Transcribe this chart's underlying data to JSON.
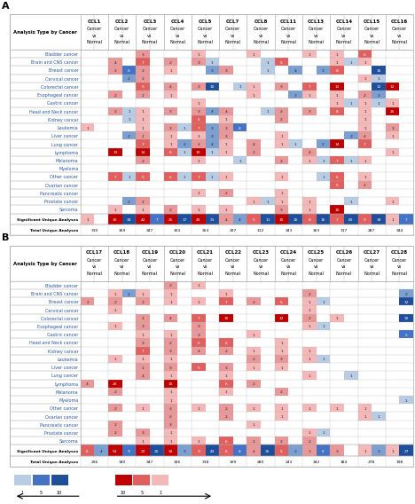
{
  "panel_A_cols": [
    "CCL1",
    "CCL2",
    "CCL3",
    "CCL4",
    "CCL5",
    "CCL7",
    "CCL8",
    "CCL11",
    "CCL13",
    "CCL14",
    "CCL15",
    "CCL16"
  ],
  "panel_B_cols": [
    "CCL17",
    "CCL18",
    "CCL19",
    "CCL20",
    "CCL21",
    "CCL22",
    "CCL23",
    "CCL24",
    "CCL25",
    "CCL26",
    "CCL27",
    "CCL28"
  ],
  "cancer_types": [
    "Bladder cancer",
    "Brain and CNS cancer",
    "Breast cancer",
    "Cervical cancer",
    "Colorectal cancer",
    "Esophageal cancer",
    "Gastric cancer",
    "Head and Neck cancer",
    "Kidney cancer",
    "Leukemia",
    "Liver cancer",
    "Lung cancer",
    "Lymphoma",
    "Melanoma",
    "Myeloma",
    "Other cancer",
    "Ovarian cancer",
    "Pancreatic cancer",
    "Prostate cancer",
    "Sarcoma"
  ],
  "panel_A_up": [
    [
      0,
      0,
      3,
      0,
      1,
      0,
      1,
      0,
      1,
      1,
      6,
      0
    ],
    [
      0,
      4,
      7,
      2,
      3,
      0,
      0,
      5,
      0,
      1,
      1,
      0
    ],
    [
      0,
      2,
      2,
      1,
      0,
      3,
      0,
      0,
      0,
      8,
      0,
      0
    ],
    [
      0,
      0,
      2,
      0,
      0,
      0,
      0,
      0,
      0,
      0,
      1,
      0
    ],
    [
      0,
      0,
      5,
      4,
      2,
      0,
      1,
      3,
      7,
      12,
      0,
      12
    ],
    [
      0,
      2,
      2,
      1,
      0,
      0,
      1,
      0,
      1,
      1,
      2,
      0
    ],
    [
      0,
      0,
      0,
      0,
      1,
      0,
      0,
      0,
      0,
      1,
      1,
      1
    ],
    [
      0,
      2,
      1,
      3,
      3,
      4,
      0,
      2,
      3,
      8,
      1,
      25
    ],
    [
      0,
      0,
      1,
      0,
      6,
      1,
      0,
      2,
      0,
      0,
      1,
      0
    ],
    [
      1,
      0,
      1,
      3,
      7,
      3,
      0,
      0,
      0,
      0,
      1,
      3
    ],
    [
      0,
      0,
      2,
      1,
      1,
      3,
      0,
      1,
      0,
      0,
      4,
      1
    ],
    [
      0,
      0,
      7,
      1,
      2,
      1,
      4,
      1,
      0,
      14,
      7,
      0
    ],
    [
      0,
      13,
      14,
      8,
      10,
      1,
      2,
      0,
      4,
      0,
      0,
      1
    ],
    [
      0,
      0,
      2,
      0,
      1,
      0,
      0,
      2,
      1,
      7,
      1,
      0
    ],
    [
      0,
      0,
      0,
      0,
      0,
      0,
      0,
      0,
      0,
      0,
      0,
      0
    ],
    [
      0,
      7,
      5,
      6,
      7,
      1,
      0,
      1,
      0,
      6,
      1,
      0
    ],
    [
      0,
      0,
      0,
      0,
      0,
      0,
      0,
      0,
      0,
      5,
      2,
      0
    ],
    [
      0,
      0,
      0,
      0,
      1,
      2,
      0,
      1,
      0,
      0,
      0,
      0
    ],
    [
      0,
      0,
      2,
      0,
      0,
      0,
      1,
      1,
      1,
      0,
      0,
      1
    ],
    [
      0,
      1,
      1,
      2,
      1,
      1,
      0,
      3,
      1,
      10,
      0,
      0
    ]
  ],
  "panel_A_down": [
    [
      0,
      0,
      0,
      0,
      0,
      0,
      0,
      0,
      0,
      0,
      0,
      0
    ],
    [
      0,
      0,
      0,
      0,
      1,
      0,
      1,
      0,
      0,
      1,
      0,
      0
    ],
    [
      0,
      6,
      0,
      0,
      3,
      0,
      1,
      4,
      3,
      0,
      16,
      0
    ],
    [
      0,
      2,
      0,
      0,
      0,
      0,
      0,
      0,
      0,
      0,
      1,
      0
    ],
    [
      0,
      0,
      0,
      0,
      10,
      1,
      0,
      0,
      0,
      0,
      12,
      0
    ],
    [
      0,
      0,
      0,
      0,
      0,
      0,
      0,
      2,
      0,
      0,
      2,
      0
    ],
    [
      0,
      0,
      0,
      0,
      0,
      0,
      0,
      0,
      0,
      1,
      1,
      0
    ],
    [
      0,
      1,
      0,
      0,
      4,
      0,
      1,
      0,
      0,
      0,
      0,
      0
    ],
    [
      0,
      1,
      0,
      0,
      0,
      0,
      0,
      0,
      0,
      0,
      0,
      0
    ],
    [
      0,
      0,
      0,
      1,
      3,
      8,
      0,
      0,
      0,
      0,
      0,
      0
    ],
    [
      0,
      2,
      0,
      0,
      3,
      0,
      0,
      0,
      0,
      3,
      0,
      0
    ],
    [
      0,
      0,
      0,
      2,
      4,
      0,
      0,
      1,
      2,
      0,
      0,
      0
    ],
    [
      0,
      0,
      0,
      1,
      1,
      0,
      0,
      0,
      0,
      0,
      0,
      0
    ],
    [
      0,
      0,
      0,
      0,
      0,
      1,
      0,
      0,
      1,
      1,
      0,
      0
    ],
    [
      0,
      0,
      0,
      0,
      0,
      0,
      0,
      0,
      0,
      0,
      0,
      0
    ],
    [
      0,
      1,
      0,
      1,
      1,
      0,
      0,
      0,
      1,
      0,
      0,
      0
    ],
    [
      0,
      0,
      0,
      0,
      0,
      0,
      0,
      0,
      0,
      0,
      0,
      0
    ],
    [
      0,
      0,
      0,
      0,
      0,
      0,
      0,
      0,
      0,
      0,
      0,
      0
    ],
    [
      0,
      2,
      0,
      0,
      0,
      0,
      1,
      0,
      0,
      1,
      0,
      0
    ],
    [
      0,
      0,
      0,
      0,
      0,
      0,
      0,
      0,
      0,
      0,
      0,
      0
    ]
  ],
  "panel_A_sig_up": [
    1,
    30,
    42,
    25,
    49,
    4,
    5,
    15,
    8,
    7,
    9,
    1
  ],
  "panel_A_sig_down": [
    0,
    34,
    7,
    17,
    31,
    4,
    11,
    10,
    16,
    80,
    39,
    7
  ],
  "panel_A_total": [
    310,
    369,
    347,
    303,
    353,
    297,
    112,
    343,
    363,
    317,
    287,
    344
  ],
  "panel_B_up": [
    [
      0,
      0,
      0,
      2,
      1,
      0,
      0,
      0,
      0,
      0,
      0,
      0
    ],
    [
      0,
      1,
      1,
      1,
      0,
      1,
      0,
      0,
      2,
      0,
      0,
      0
    ],
    [
      2,
      2,
      2,
      1,
      1,
      7,
      2,
      5,
      1,
      0,
      0,
      0
    ],
    [
      0,
      1,
      0,
      0,
      0,
      0,
      0,
      0,
      1,
      0,
      0,
      0
    ],
    [
      0,
      0,
      2,
      4,
      7,
      10,
      0,
      12,
      2,
      1,
      0,
      0
    ],
    [
      0,
      1,
      3,
      0,
      3,
      0,
      0,
      0,
      1,
      0,
      0,
      0
    ],
    [
      0,
      0,
      1,
      1,
      3,
      0,
      1,
      0,
      0,
      0,
      0,
      0
    ],
    [
      0,
      0,
      3,
      2,
      6,
      6,
      0,
      1,
      0,
      0,
      0,
      0
    ],
    [
      0,
      0,
      7,
      3,
      4,
      2,
      1,
      1,
      1,
      0,
      0,
      0
    ],
    [
      0,
      1,
      1,
      1,
      0,
      0,
      2,
      3,
      1,
      0,
      0,
      0
    ],
    [
      0,
      0,
      2,
      3,
      5,
      3,
      1,
      1,
      0,
      0,
      0,
      0
    ],
    [
      0,
      0,
      4,
      1,
      0,
      1,
      0,
      0,
      1,
      0,
      0,
      0
    ],
    [
      4,
      20,
      0,
      10,
      0,
      6,
      2,
      0,
      0,
      0,
      0,
      0
    ],
    [
      0,
      2,
      0,
      1,
      0,
      1,
      0,
      2,
      0,
      0,
      0,
      0
    ],
    [
      0,
      0,
      0,
      1,
      0,
      0,
      0,
      0,
      0,
      0,
      0,
      0
    ],
    [
      0,
      2,
      1,
      3,
      1,
      2,
      1,
      1,
      1,
      1,
      1,
      0
    ],
    [
      0,
      0,
      0,
      2,
      0,
      2,
      0,
      1,
      0,
      0,
      1,
      0
    ],
    [
      0,
      2,
      0,
      3,
      0,
      0,
      1,
      0,
      0,
      0,
      0,
      0
    ],
    [
      0,
      2,
      3,
      1,
      0,
      0,
      0,
      0,
      1,
      0,
      0,
      0
    ],
    [
      0,
      0,
      1,
      1,
      1,
      6,
      2,
      2,
      2,
      0,
      0,
      0
    ]
  ],
  "panel_B_down": [
    [
      0,
      0,
      0,
      0,
      0,
      0,
      0,
      0,
      0,
      0,
      0,
      0
    ],
    [
      0,
      2,
      0,
      0,
      0,
      0,
      0,
      0,
      0,
      0,
      0,
      2
    ],
    [
      0,
      0,
      0,
      0,
      0,
      0,
      0,
      0,
      1,
      0,
      0,
      12
    ],
    [
      0,
      0,
      0,
      0,
      0,
      0,
      0,
      0,
      0,
      0,
      0,
      0
    ],
    [
      0,
      0,
      0,
      0,
      0,
      0,
      0,
      0,
      0,
      0,
      0,
      30
    ],
    [
      0,
      0,
      0,
      0,
      0,
      0,
      0,
      0,
      1,
      0,
      0,
      0
    ],
    [
      0,
      0,
      0,
      0,
      0,
      0,
      0,
      0,
      0,
      0,
      0,
      5
    ],
    [
      0,
      0,
      0,
      0,
      0,
      0,
      0,
      0,
      0,
      0,
      0,
      0
    ],
    [
      0,
      0,
      0,
      0,
      0,
      0,
      0,
      0,
      0,
      0,
      0,
      0
    ],
    [
      0,
      0,
      0,
      0,
      0,
      0,
      0,
      0,
      1,
      0,
      0,
      0
    ],
    [
      0,
      0,
      0,
      0,
      0,
      0,
      0,
      0,
      0,
      0,
      0,
      0
    ],
    [
      0,
      0,
      0,
      0,
      0,
      0,
      0,
      0,
      0,
      1,
      0,
      0
    ],
    [
      0,
      0,
      0,
      0,
      0,
      0,
      0,
      0,
      0,
      0,
      0,
      0
    ],
    [
      0,
      0,
      0,
      0,
      0,
      0,
      0,
      0,
      0,
      0,
      0,
      0
    ],
    [
      0,
      0,
      0,
      0,
      0,
      0,
      0,
      0,
      0,
      0,
      0,
      1
    ],
    [
      0,
      0,
      0,
      0,
      0,
      0,
      0,
      0,
      0,
      0,
      0,
      0
    ],
    [
      0,
      0,
      0,
      0,
      0,
      0,
      0,
      0,
      0,
      0,
      1,
      0
    ],
    [
      0,
      0,
      0,
      0,
      0,
      0,
      0,
      0,
      0,
      0,
      0,
      0
    ],
    [
      0,
      0,
      0,
      0,
      0,
      0,
      0,
      0,
      1,
      0,
      0,
      0
    ],
    [
      0,
      0,
      0,
      0,
      0,
      0,
      0,
      0,
      0,
      0,
      0,
      0
    ]
  ],
  "panel_B_sig_up": [
    6,
    52,
    22,
    34,
    9,
    6,
    4,
    5,
    3,
    3,
    1,
    1
  ],
  "panel_B_sig_down": [
    4,
    9,
    20,
    3,
    43,
    8,
    35,
    2,
    6,
    0,
    3,
    27
  ],
  "panel_B_total": [
    296,
    340,
    347,
    326,
    318,
    309,
    280,
    243,
    342,
    184,
    278,
    198
  ],
  "blue_dark": "#1f4e9b",
  "blue_mid": "#4472c4",
  "blue_light": "#b8cce4",
  "red_dark": "#c00000",
  "red_mid": "#e06060",
  "red_light": "#f4b8b8",
  "text_blue": "#2155a4",
  "bg_white": "#ffffff",
  "header_text": "#000000",
  "row_text": "#2155a4",
  "grid_line": "#aaaaaa"
}
